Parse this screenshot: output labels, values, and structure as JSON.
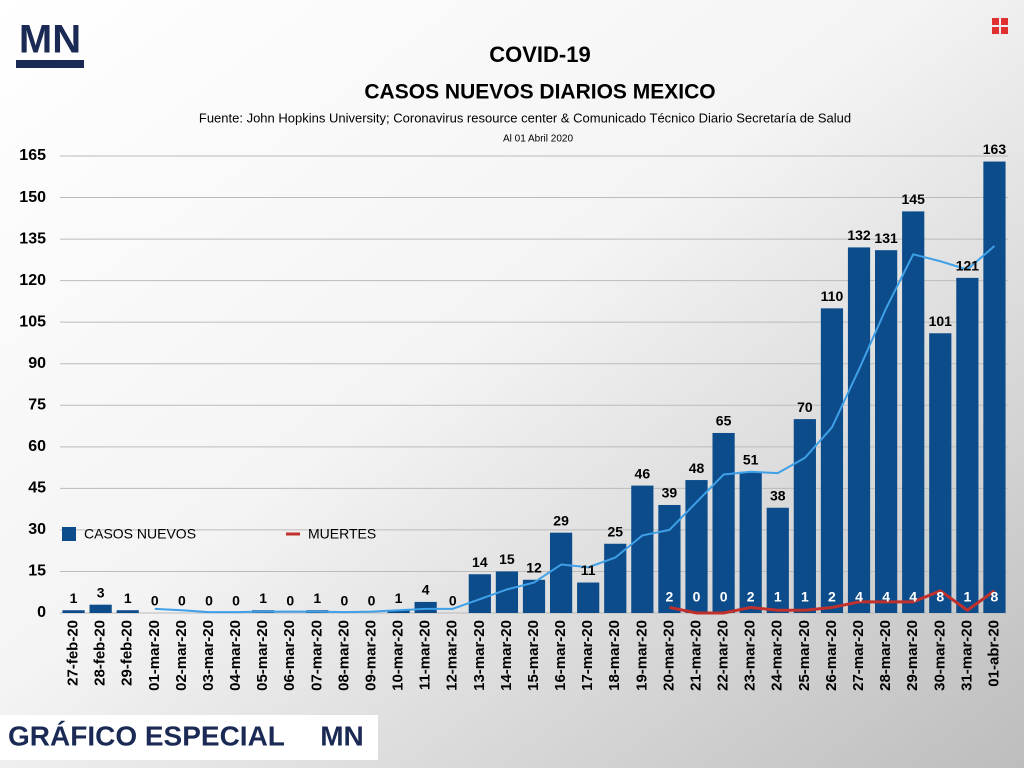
{
  "logo": "MN",
  "footer": {
    "text": "GRÁFICO ESPECIAL",
    "logo": "MN"
  },
  "chart_data": {
    "type": "bar",
    "title": "COVID-19",
    "subtitle": "CASOS NUEVOS DIARIOS MEXICO",
    "source": "Fuente: John Hopkins University; Coronavirus resource center & Comunicado Técnico Diario Secretaría de Salud",
    "date_note": "Al 01 Abril 2020",
    "categories": [
      "27-feb-20",
      "28-feb-20",
      "29-feb-20",
      "01-mar-20",
      "02-mar-20",
      "03-mar-20",
      "04-mar-20",
      "05-mar-20",
      "06-mar-20",
      "07-mar-20",
      "08-mar-20",
      "09-mar-20",
      "10-mar-20",
      "11-mar-20",
      "12-mar-20",
      "13-mar-20",
      "14-mar-20",
      "15-mar-20",
      "16-mar-20",
      "17-mar-20",
      "18-mar-20",
      "19-mar-20",
      "20-mar-20",
      "21-mar-20",
      "22-mar-20",
      "23-mar-20",
      "24-mar-20",
      "25-mar-20",
      "26-mar-20",
      "27-mar-20",
      "28-mar-20",
      "29-mar-20",
      "30-mar-20",
      "31-mar-20",
      "01-abr-20"
    ],
    "series": [
      {
        "name": "CASOS NUEVOS",
        "color": "#0d4c8a",
        "kind": "bar",
        "values": [
          1,
          3,
          1,
          0,
          0,
          0,
          0,
          1,
          0,
          1,
          0,
          0,
          1,
          4,
          0,
          14,
          15,
          12,
          29,
          11,
          25,
          46,
          39,
          48,
          65,
          51,
          38,
          70,
          110,
          132,
          131,
          145,
          101,
          121,
          163
        ]
      },
      {
        "name": "MUERTES",
        "color": "#c0302c",
        "kind": "line",
        "values": [
          null,
          null,
          null,
          null,
          null,
          null,
          null,
          null,
          null,
          null,
          null,
          null,
          null,
          null,
          null,
          null,
          null,
          null,
          null,
          null,
          null,
          null,
          2,
          0,
          0,
          2,
          1,
          1,
          2,
          4,
          4,
          4,
          8,
          1,
          8
        ]
      },
      {
        "color": "#3fa0e8",
        "kind": "trend",
        "values": [
          null,
          null,
          null,
          1.5,
          1,
          0.3,
          0.3,
          0.5,
          0.5,
          0.5,
          0.3,
          0.5,
          1,
          1.5,
          1.5,
          5,
          8.5,
          11,
          17.5,
          16.5,
          20,
          28,
          30,
          40,
          50,
          51,
          50.5,
          56,
          67,
          88,
          110,
          129.5,
          127,
          124,
          132.5
        ]
      }
    ],
    "ylim": [
      0,
      165
    ],
    "yticks": [
      0,
      15,
      30,
      45,
      60,
      75,
      90,
      105,
      120,
      135,
      150,
      165
    ],
    "grid": true
  }
}
